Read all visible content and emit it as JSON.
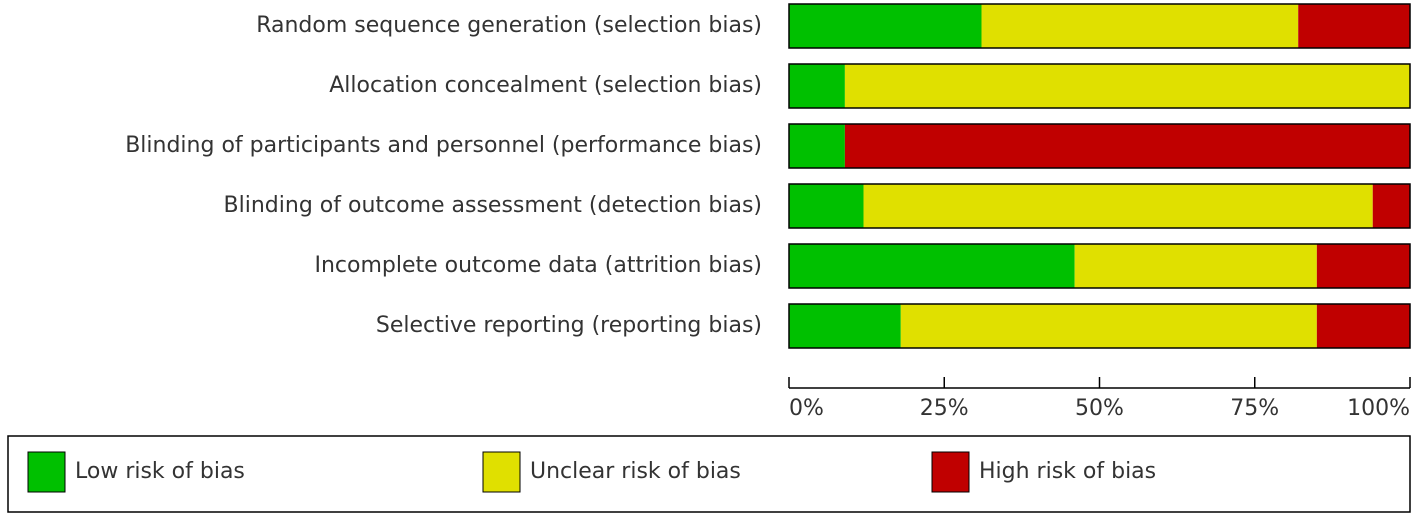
{
  "chart_data": {
    "type": "stacked-barh",
    "categories": [
      "Random sequence generation (selection bias)",
      "Allocation concealment (selection bias)",
      "Blinding of participants and personnel (performance bias)",
      "Blinding of outcome assessment (detection bias)",
      "Incomplete outcome data (attrition bias)",
      "Selective reporting (reporting bias)"
    ],
    "series": [
      {
        "name": "Low risk of bias",
        "color": "#00c000",
        "values": [
          31,
          9,
          9,
          12,
          46,
          18
        ]
      },
      {
        "name": "Unclear risk of bias",
        "color": "#e0e000",
        "values": [
          51,
          91,
          0,
          82,
          39,
          67
        ]
      },
      {
        "name": "High risk of bias",
        "color": "#c00000",
        "values": [
          18,
          0,
          91,
          6,
          15,
          15
        ]
      }
    ],
    "xlim": [
      0,
      100
    ],
    "xticks": [
      {
        "value": 0,
        "label": "0%"
      },
      {
        "value": 25,
        "label": "25%"
      },
      {
        "value": 50,
        "label": "50%"
      },
      {
        "value": 75,
        "label": "75%"
      },
      {
        "value": 100,
        "label": "100%"
      }
    ]
  }
}
